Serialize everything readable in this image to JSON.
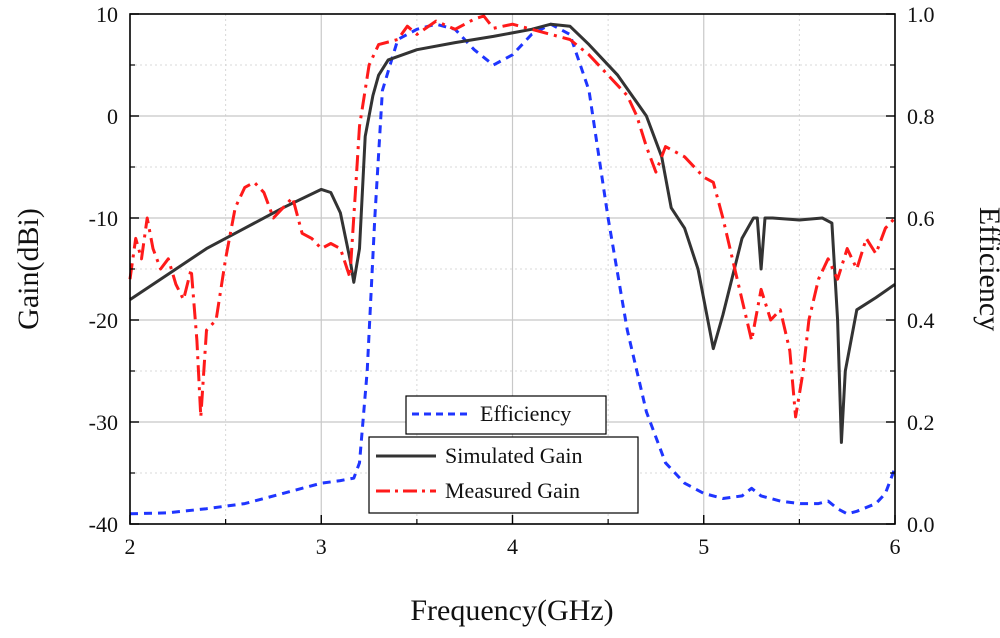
{
  "chart_data": {
    "type": "line",
    "xlabel": "Frequency(GHz)",
    "ylabel_left": "Gain(dBi)",
    "ylabel_right": "Efficiency",
    "xlim": [
      2,
      6
    ],
    "ylim_left": [
      -40,
      10
    ],
    "ylim_right": [
      0.0,
      1.0
    ],
    "grid": true,
    "x_ticks": [
      "2",
      "3",
      "4",
      "5",
      "6"
    ],
    "y_left_ticks": [
      "10",
      "0",
      "-10",
      "-20",
      "-30",
      "-40"
    ],
    "y_right_ticks": [
      "1.0",
      "0.8",
      "0.6",
      "0.4",
      "0.2",
      "0.0"
    ],
    "legend_boxes": [
      {
        "placement": "center-bottom-upper",
        "entries": [
          "Efficiency"
        ]
      },
      {
        "placement": "center-bottom-lower",
        "entries": [
          "Simulated Gain",
          "Measured Gain"
        ]
      }
    ],
    "series": [
      {
        "name": "Efficiency",
        "axis": "right",
        "color": "#1f35ff",
        "style": "dashed",
        "points": [
          [
            2.0,
            0.02
          ],
          [
            2.2,
            0.022
          ],
          [
            2.4,
            0.03
          ],
          [
            2.6,
            0.04
          ],
          [
            2.8,
            0.06
          ],
          [
            3.0,
            0.08
          ],
          [
            3.1,
            0.085
          ],
          [
            3.17,
            0.09
          ],
          [
            3.2,
            0.12
          ],
          [
            3.24,
            0.3
          ],
          [
            3.28,
            0.6
          ],
          [
            3.32,
            0.85
          ],
          [
            3.4,
            0.95
          ],
          [
            3.5,
            0.97
          ],
          [
            3.6,
            0.98
          ],
          [
            3.7,
            0.97
          ],
          [
            3.8,
            0.93
          ],
          [
            3.9,
            0.9
          ],
          [
            4.0,
            0.92
          ],
          [
            4.1,
            0.96
          ],
          [
            4.2,
            0.98
          ],
          [
            4.3,
            0.96
          ],
          [
            4.4,
            0.85
          ],
          [
            4.5,
            0.6
          ],
          [
            4.6,
            0.38
          ],
          [
            4.7,
            0.22
          ],
          [
            4.8,
            0.12
          ],
          [
            4.9,
            0.08
          ],
          [
            5.0,
            0.06
          ],
          [
            5.1,
            0.05
          ],
          [
            5.2,
            0.055
          ],
          [
            5.25,
            0.07
          ],
          [
            5.3,
            0.055
          ],
          [
            5.4,
            0.045
          ],
          [
            5.5,
            0.04
          ],
          [
            5.6,
            0.04
          ],
          [
            5.65,
            0.045
          ],
          [
            5.7,
            0.03
          ],
          [
            5.75,
            0.02
          ],
          [
            5.8,
            0.025
          ],
          [
            5.9,
            0.04
          ],
          [
            5.95,
            0.06
          ],
          [
            6.0,
            0.11
          ]
        ]
      },
      {
        "name": "Simulated Gain",
        "axis": "left",
        "color": "#333333",
        "style": "solid",
        "points": [
          [
            2.0,
            -18
          ],
          [
            2.2,
            -15.5
          ],
          [
            2.4,
            -13
          ],
          [
            2.6,
            -11
          ],
          [
            2.8,
            -9
          ],
          [
            3.0,
            -7.2
          ],
          [
            3.05,
            -7.5
          ],
          [
            3.1,
            -9.5
          ],
          [
            3.15,
            -14
          ],
          [
            3.17,
            -16.3
          ],
          [
            3.2,
            -13
          ],
          [
            3.23,
            -2
          ],
          [
            3.27,
            2
          ],
          [
            3.3,
            4
          ],
          [
            3.35,
            5.5
          ],
          [
            3.5,
            6.5
          ],
          [
            3.7,
            7.2
          ],
          [
            3.9,
            7.8
          ],
          [
            4.1,
            8.5
          ],
          [
            4.2,
            9
          ],
          [
            4.3,
            8.8
          ],
          [
            4.4,
            7
          ],
          [
            4.55,
            4
          ],
          [
            4.7,
            0
          ],
          [
            4.78,
            -4
          ],
          [
            4.83,
            -9
          ],
          [
            4.9,
            -11
          ],
          [
            4.97,
            -15
          ],
          [
            5.05,
            -22.8
          ],
          [
            5.1,
            -19.5
          ],
          [
            5.2,
            -12
          ],
          [
            5.26,
            -10
          ],
          [
            5.28,
            -10
          ],
          [
            5.3,
            -15
          ],
          [
            5.32,
            -10
          ],
          [
            5.36,
            -10
          ],
          [
            5.5,
            -10.2
          ],
          [
            5.62,
            -10
          ],
          [
            5.67,
            -10.5
          ],
          [
            5.7,
            -20
          ],
          [
            5.72,
            -32
          ],
          [
            5.74,
            -25
          ],
          [
            5.8,
            -19
          ],
          [
            5.9,
            -17.8
          ],
          [
            6.0,
            -16.5
          ]
        ]
      },
      {
        "name": "Measured Gain",
        "axis": "left",
        "color": "#ff1a1a",
        "style": "dash-dot",
        "points": [
          [
            2.0,
            -16
          ],
          [
            2.03,
            -12
          ],
          [
            2.06,
            -14
          ],
          [
            2.09,
            -10
          ],
          [
            2.12,
            -13
          ],
          [
            2.16,
            -15
          ],
          [
            2.2,
            -14
          ],
          [
            2.24,
            -16.5
          ],
          [
            2.28,
            -18
          ],
          [
            2.32,
            -15
          ],
          [
            2.35,
            -22
          ],
          [
            2.37,
            -29.5
          ],
          [
            2.4,
            -21
          ],
          [
            2.45,
            -20
          ],
          [
            2.5,
            -14
          ],
          [
            2.55,
            -9
          ],
          [
            2.6,
            -7
          ],
          [
            2.65,
            -6.5
          ],
          [
            2.7,
            -7.5
          ],
          [
            2.75,
            -10
          ],
          [
            2.8,
            -9
          ],
          [
            2.85,
            -8
          ],
          [
            2.9,
            -11.5
          ],
          [
            2.95,
            -12
          ],
          [
            3.0,
            -13
          ],
          [
            3.05,
            -12.5
          ],
          [
            3.1,
            -13
          ],
          [
            3.15,
            -15.8
          ],
          [
            3.18,
            -7
          ],
          [
            3.2,
            -1
          ],
          [
            3.25,
            5
          ],
          [
            3.3,
            7
          ],
          [
            3.4,
            7.5
          ],
          [
            3.45,
            8.8
          ],
          [
            3.5,
            8
          ],
          [
            3.6,
            9.3
          ],
          [
            3.7,
            8.5
          ],
          [
            3.8,
            9.5
          ],
          [
            3.85,
            9.8
          ],
          [
            3.9,
            8.6
          ],
          [
            4.0,
            9
          ],
          [
            4.1,
            8.5
          ],
          [
            4.2,
            8
          ],
          [
            4.3,
            7.5
          ],
          [
            4.4,
            6
          ],
          [
            4.5,
            4
          ],
          [
            4.6,
            2
          ],
          [
            4.65,
            0
          ],
          [
            4.7,
            -3
          ],
          [
            4.75,
            -5.5
          ],
          [
            4.8,
            -3
          ],
          [
            4.9,
            -4
          ],
          [
            5.0,
            -6
          ],
          [
            5.05,
            -6.5
          ],
          [
            5.1,
            -10
          ],
          [
            5.15,
            -14
          ],
          [
            5.2,
            -18
          ],
          [
            5.25,
            -22
          ],
          [
            5.3,
            -17
          ],
          [
            5.35,
            -20
          ],
          [
            5.4,
            -19
          ],
          [
            5.45,
            -23
          ],
          [
            5.48,
            -29.5
          ],
          [
            5.52,
            -25
          ],
          [
            5.55,
            -20
          ],
          [
            5.6,
            -16
          ],
          [
            5.65,
            -14
          ],
          [
            5.7,
            -16
          ],
          [
            5.75,
            -13
          ],
          [
            5.8,
            -15
          ],
          [
            5.85,
            -12
          ],
          [
            5.9,
            -13.5
          ],
          [
            5.95,
            -11
          ],
          [
            6.0,
            -10
          ]
        ]
      }
    ]
  }
}
